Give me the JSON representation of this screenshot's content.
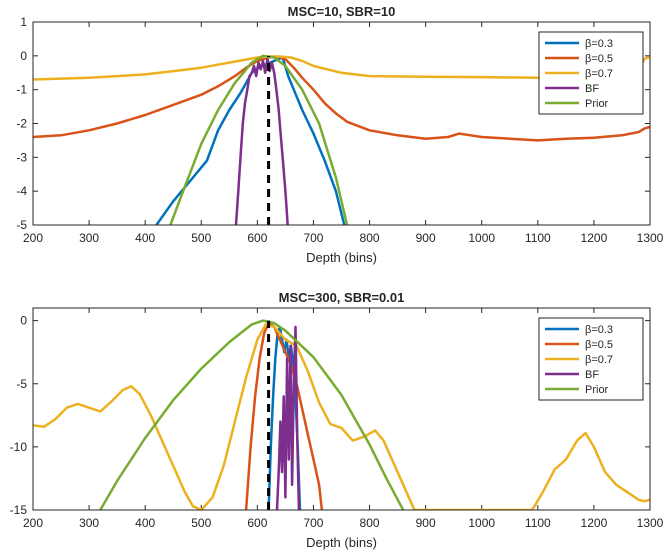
{
  "chart_data": [
    {
      "type": "line",
      "title": "MSC=10, SBR=10",
      "xlabel": "Depth (bins)",
      "ylabel": "",
      "xlim": [
        200,
        1300
      ],
      "ylim": [
        -5,
        1
      ],
      "x_ticks": [
        "200",
        "300",
        "400",
        "500",
        "600",
        "700",
        "800",
        "900",
        "1000",
        "1100",
        "1200",
        "1300"
      ],
      "y_ticks": [
        "1",
        "0",
        "-1",
        "-2",
        "-3",
        "-4",
        "-5"
      ],
      "legend_position": "top-right",
      "grid": false,
      "vline": {
        "x": 620,
        "style": "dashed",
        "color": "#000000"
      },
      "series": [
        {
          "name": "β=0.3",
          "color": "#0072BD",
          "points": [
            [
              420,
              -5
            ],
            [
              450,
              -4.3
            ],
            [
              480,
              -3.7
            ],
            [
              510,
              -3.1
            ],
            [
              530,
              -2.2
            ],
            [
              550,
              -1.6
            ],
            [
              570,
              -1.1
            ],
            [
              590,
              -0.5
            ],
            [
              605,
              -0.3
            ],
            [
              615,
              -0.25
            ],
            [
              630,
              -0.15
            ],
            [
              645,
              -0.05
            ],
            [
              655,
              -0.6
            ],
            [
              665,
              -1.0
            ],
            [
              680,
              -1.6
            ],
            [
              700,
              -2.3
            ],
            [
              720,
              -3.1
            ],
            [
              740,
              -4.0
            ],
            [
              755,
              -5
            ]
          ]
        },
        {
          "name": "β=0.5",
          "color": "#D95319",
          "points": [
            [
              200,
              -2.4
            ],
            [
              250,
              -2.35
            ],
            [
              300,
              -2.2
            ],
            [
              350,
              -2.0
            ],
            [
              400,
              -1.75
            ],
            [
              450,
              -1.45
            ],
            [
              500,
              -1.15
            ],
            [
              530,
              -0.9
            ],
            [
              560,
              -0.6
            ],
            [
              580,
              -0.35
            ],
            [
              600,
              -0.15
            ],
            [
              620,
              -0.05
            ],
            [
              635,
              -0.02
            ],
            [
              650,
              -0.1
            ],
            [
              665,
              -0.35
            ],
            [
              680,
              -0.65
            ],
            [
              700,
              -1.0
            ],
            [
              720,
              -1.4
            ],
            [
              740,
              -1.7
            ],
            [
              760,
              -1.95
            ],
            [
              800,
              -2.2
            ],
            [
              850,
              -2.35
            ],
            [
              900,
              -2.45
            ],
            [
              940,
              -2.4
            ],
            [
              960,
              -2.3
            ],
            [
              980,
              -2.35
            ],
            [
              1000,
              -2.4
            ],
            [
              1050,
              -2.45
            ],
            [
              1100,
              -2.5
            ],
            [
              1150,
              -2.45
            ],
            [
              1200,
              -2.42
            ],
            [
              1250,
              -2.35
            ],
            [
              1280,
              -2.25
            ],
            [
              1290,
              -2.15
            ],
            [
              1300,
              -2.1
            ]
          ]
        },
        {
          "name": "β=0.7",
          "color": "#EDB120",
          "points": [
            [
              200,
              -0.7
            ],
            [
              300,
              -0.65
            ],
            [
              400,
              -0.55
            ],
            [
              450,
              -0.45
            ],
            [
              500,
              -0.35
            ],
            [
              550,
              -0.2
            ],
            [
              600,
              -0.05
            ],
            [
              620,
              -0.02
            ],
            [
              640,
              -0.02
            ],
            [
              660,
              -0.05
            ],
            [
              680,
              -0.15
            ],
            [
              700,
              -0.3
            ],
            [
              750,
              -0.5
            ],
            [
              800,
              -0.6
            ],
            [
              900,
              -0.62
            ],
            [
              1000,
              -0.63
            ],
            [
              1100,
              -0.65
            ],
            [
              1200,
              -0.65
            ],
            [
              1250,
              -0.6
            ],
            [
              1280,
              -0.4
            ],
            [
              1290,
              -0.1
            ],
            [
              1295,
              -0.05
            ],
            [
              1300,
              -0.05
            ]
          ]
        },
        {
          "name": "BF",
          "color": "#7E2F8E",
          "points": [
            [
              562,
              -5
            ],
            [
              566,
              -4.0
            ],
            [
              570,
              -3.0
            ],
            [
              574,
              -2.0
            ],
            [
              578,
              -1.4
            ],
            [
              582,
              -1.0
            ],
            [
              586,
              -0.6
            ],
            [
              590,
              -0.5
            ],
            [
              594,
              -0.3
            ],
            [
              598,
              -0.6
            ],
            [
              602,
              -0.2
            ],
            [
              606,
              -0.4
            ],
            [
              610,
              -0.15
            ],
            [
              614,
              -0.5
            ],
            [
              618,
              -0.1
            ],
            [
              622,
              -0.45
            ],
            [
              626,
              -0.2
            ],
            [
              630,
              -0.5
            ],
            [
              634,
              -1.0
            ],
            [
              638,
              -1.6
            ],
            [
              642,
              -2.4
            ],
            [
              646,
              -3.2
            ],
            [
              650,
              -4.0
            ],
            [
              654,
              -5
            ]
          ]
        },
        {
          "name": "Prior",
          "color": "#77AC30",
          "points": [
            [
              445,
              -5
            ],
            [
              470,
              -3.9
            ],
            [
              500,
              -2.6
            ],
            [
              530,
              -1.6
            ],
            [
              560,
              -0.8
            ],
            [
              590,
              -0.2
            ],
            [
              610,
              0
            ],
            [
              630,
              -0.05
            ],
            [
              650,
              -0.3
            ],
            [
              680,
              -1.0
            ],
            [
              710,
              -2.0
            ],
            [
              740,
              -3.6
            ],
            [
              760,
              -5
            ]
          ]
        }
      ]
    },
    {
      "type": "line",
      "title": "MSC=300, SBR=0.01",
      "xlabel": "Depth (bins)",
      "ylabel": "",
      "xlim": [
        200,
        1300
      ],
      "ylim": [
        -15,
        1
      ],
      "x_ticks": [
        "200",
        "300",
        "400",
        "500",
        "600",
        "700",
        "800",
        "900",
        "1000",
        "1100",
        "1200",
        "1300"
      ],
      "y_ticks": [
        "0",
        "-5",
        "-10",
        "-15"
      ],
      "legend_position": "top-right",
      "grid": false,
      "vline": {
        "x": 620,
        "style": "dashed",
        "color": "#000000"
      },
      "series": [
        {
          "name": "β=0.3",
          "color": "#0072BD",
          "points": [
            [
              620,
              -15
            ],
            [
              624,
              -10
            ],
            [
              628,
              -6
            ],
            [
              632,
              -3
            ],
            [
              636,
              -1
            ],
            [
              640,
              -0.5
            ],
            [
              644,
              -1.5
            ],
            [
              648,
              -2.5
            ],
            [
              652,
              -1.5
            ],
            [
              656,
              -3
            ],
            [
              660,
              -2
            ],
            [
              664,
              -3.5
            ],
            [
              668,
              -6
            ],
            [
              672,
              -10
            ],
            [
              676,
              -15
            ]
          ]
        },
        {
          "name": "β=0.5",
          "color": "#D95319",
          "points": [
            [
              580,
              -15
            ],
            [
              588,
              -10
            ],
            [
              596,
              -6
            ],
            [
              604,
              -3
            ],
            [
              612,
              -1
            ],
            [
              620,
              -0.2
            ],
            [
              630,
              -0.5
            ],
            [
              640,
              -1.5
            ],
            [
              650,
              -2.5
            ],
            [
              660,
              -3.5
            ],
            [
              670,
              -5
            ],
            [
              680,
              -7
            ],
            [
              690,
              -9
            ],
            [
              700,
              -11
            ],
            [
              710,
              -13
            ],
            [
              715,
              -15
            ]
          ]
        },
        {
          "name": "β=0.7",
          "color": "#EDB120",
          "points": [
            [
              200,
              -8.3
            ],
            [
              220,
              -8.4
            ],
            [
              240,
              -7.8
            ],
            [
              260,
              -6.9
            ],
            [
              280,
              -6.6
            ],
            [
              300,
              -6.9
            ],
            [
              320,
              -7.2
            ],
            [
              340,
              -6.4
            ],
            [
              360,
              -5.5
            ],
            [
              375,
              -5.2
            ],
            [
              390,
              -5.8
            ],
            [
              410,
              -7.5
            ],
            [
              430,
              -9.5
            ],
            [
              450,
              -11.5
            ],
            [
              470,
              -13.5
            ],
            [
              485,
              -14.7
            ],
            [
              500,
              -15
            ],
            [
              520,
              -14
            ],
            [
              540,
              -11.5
            ],
            [
              560,
              -8
            ],
            [
              580,
              -4.5
            ],
            [
              600,
              -1.5
            ],
            [
              615,
              -0.3
            ],
            [
              630,
              -0.5
            ],
            [
              650,
              -1.5
            ],
            [
              670,
              -2
            ],
            [
              690,
              -4
            ],
            [
              710,
              -6.5
            ],
            [
              730,
              -8.2
            ],
            [
              750,
              -8.5
            ],
            [
              770,
              -9.5
            ],
            [
              790,
              -9.2
            ],
            [
              810,
              -8.7
            ],
            [
              825,
              -9.5
            ],
            [
              840,
              -11
            ],
            [
              860,
              -13
            ],
            [
              880,
              -15
            ],
            [
              1090,
              -15
            ],
            [
              1110,
              -13.5
            ],
            [
              1130,
              -11.8
            ],
            [
              1150,
              -11
            ],
            [
              1170,
              -9.5
            ],
            [
              1185,
              -8.9
            ],
            [
              1200,
              -10
            ],
            [
              1220,
              -12
            ],
            [
              1240,
              -13
            ],
            [
              1260,
              -13.6
            ],
            [
              1280,
              -14.2
            ],
            [
              1290,
              -14.3
            ],
            [
              1300,
              -14.2
            ]
          ]
        },
        {
          "name": "BF",
          "color": "#7E2F8E",
          "points": [
            [
              635,
              -15
            ],
            [
              638,
              -12
            ],
            [
              641,
              -8
            ],
            [
              644,
              -12
            ],
            [
              647,
              -6
            ],
            [
              650,
              -14
            ],
            [
              653,
              -3
            ],
            [
              656,
              -11
            ],
            [
              659,
              -2
            ],
            [
              662,
              -13
            ],
            [
              665,
              -5
            ],
            [
              668,
              -0.5
            ],
            [
              671,
              -9
            ],
            [
              674,
              -15
            ]
          ]
        },
        {
          "name": "Prior",
          "color": "#77AC30",
          "points": [
            [
              320,
              -15
            ],
            [
              350,
              -12.7
            ],
            [
              400,
              -9.3
            ],
            [
              450,
              -6.3
            ],
            [
              500,
              -3.8
            ],
            [
              550,
              -1.7
            ],
            [
              590,
              -0.3
            ],
            [
              610,
              0
            ],
            [
              630,
              -0.2
            ],
            [
              650,
              -0.8
            ],
            [
              700,
              -2.9
            ],
            [
              750,
              -5.9
            ],
            [
              800,
              -9.8
            ],
            [
              830,
              -12.5
            ],
            [
              860,
              -15
            ]
          ]
        }
      ]
    }
  ]
}
